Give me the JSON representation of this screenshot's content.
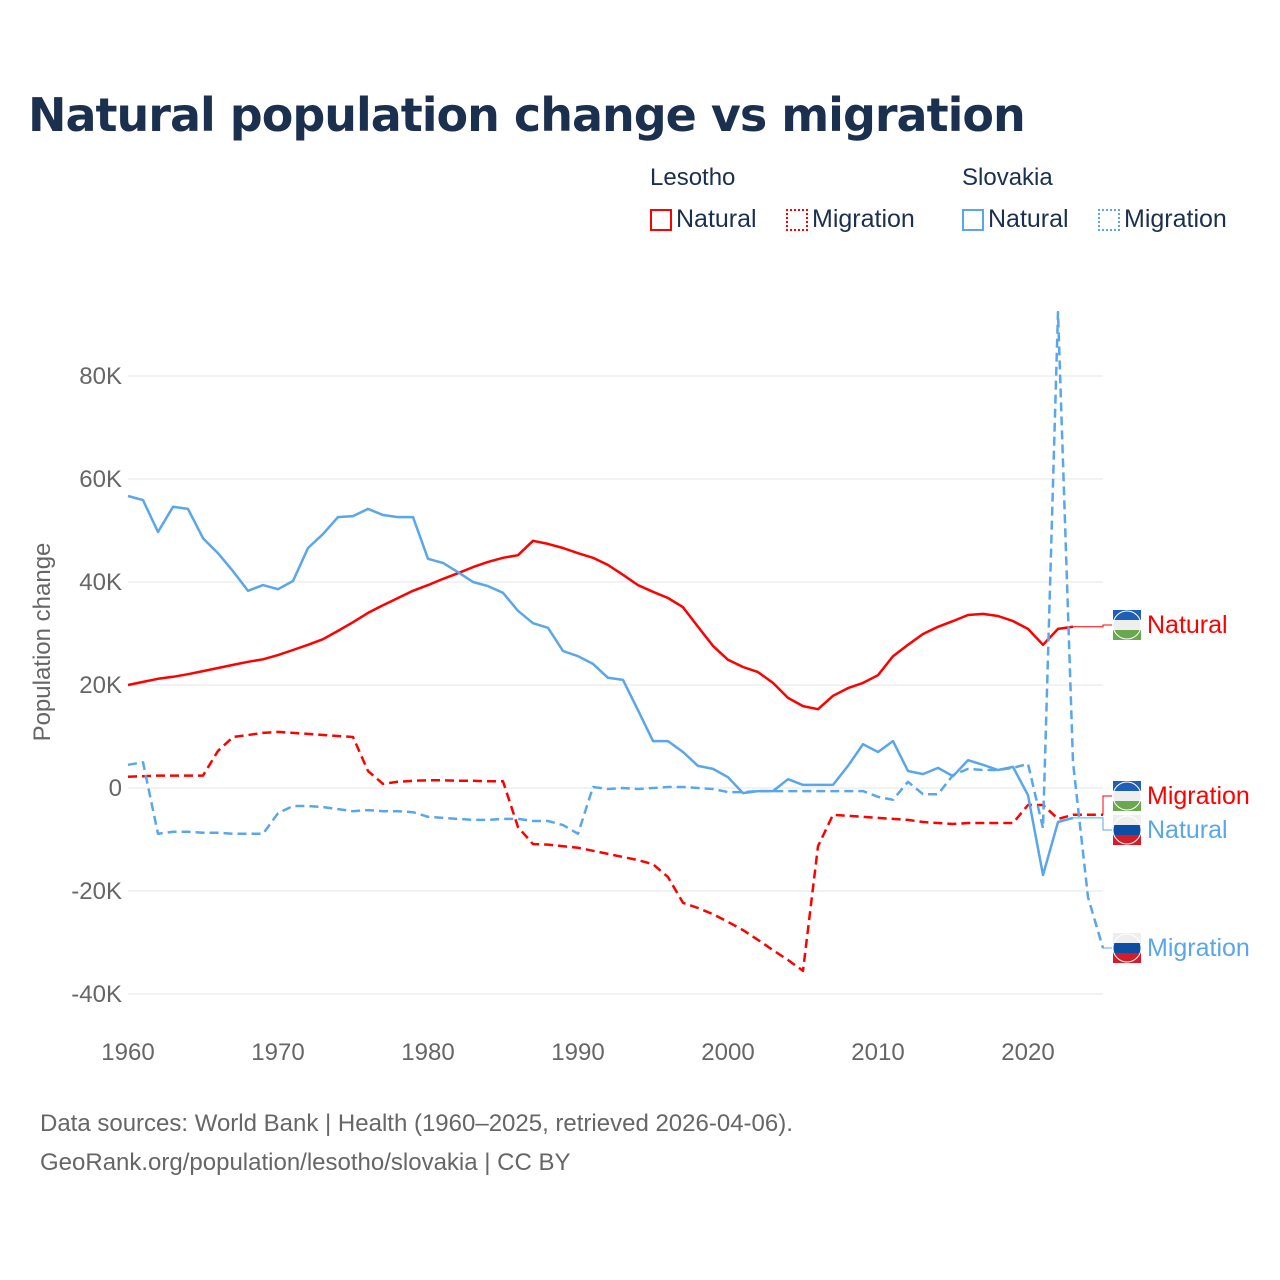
{
  "title": "Natural population change vs migration",
  "legend": {
    "groups": [
      {
        "country": "Lesotho",
        "color": "#ff0000",
        "items": [
          "Natural",
          "Migration"
        ]
      },
      {
        "country": "Slovakia",
        "color": "#5aa6ea",
        "items": [
          "Natural",
          "Migration"
        ]
      }
    ]
  },
  "footer": {
    "line1": "Data sources: World Bank | Health (1960–2025, retrieved 2026-04-06).",
    "line2": "GeoRank.org/population/lesotho/slovakia | CC BY"
  },
  "chart_data": {
    "type": "line",
    "title": "Natural population change vs migration",
    "xlabel": "",
    "ylabel": "Population change",
    "xlim": [
      1960,
      2025
    ],
    "ylim": [
      -40000,
      80000
    ],
    "x_ticks": [
      1960,
      1970,
      1980,
      1990,
      2000,
      2010,
      2020
    ],
    "y_ticks": [
      -40000,
      -20000,
      0,
      20000,
      40000,
      60000,
      80000
    ],
    "y_tick_labels": [
      "-40K",
      "-20K",
      "0",
      "20K",
      "40K",
      "60K",
      "80K"
    ],
    "grid": true,
    "series": [
      {
        "name": "Lesotho Natural",
        "label": "Natural",
        "color": "#ff0000",
        "dash": false,
        "start_year": 1960,
        "values": [
          20.0,
          20.6,
          21.2,
          21.6,
          22.1,
          22.7,
          23.3,
          23.9,
          24.5,
          25.0,
          25.8,
          26.8,
          27.8,
          28.9,
          30.5,
          32.2,
          34.0,
          35.5,
          36.9,
          38.3,
          39.4,
          40.6,
          41.7,
          42.9,
          43.9,
          44.7,
          45.2,
          48.0,
          47.4,
          46.6,
          45.6,
          44.7,
          43.3,
          41.4,
          39.4,
          38.1,
          36.9,
          35.1,
          31.3,
          27.6,
          24.9,
          23.5,
          22.5,
          20.4,
          17.5,
          15.9,
          15.3,
          17.9,
          19.4,
          20.4,
          21.9,
          25.6,
          27.8,
          29.9,
          31.3,
          32.4,
          33.6,
          33.8,
          33.4,
          32.4,
          30.9,
          27.8,
          30.9,
          31.3
        ]
      },
      {
        "name": "Lesotho Migration",
        "label": "Migration",
        "color": "#ff0000",
        "dash": true,
        "start_year": 1960,
        "values": [
          2.2,
          2.3,
          2.4,
          2.4,
          2.4,
          2.4,
          7.2,
          9.9,
          10.3,
          10.7,
          10.9,
          10.7,
          10.5,
          10.3,
          10.1,
          9.9,
          3.3,
          0.8,
          1.2,
          1.4,
          1.5,
          1.5,
          1.4,
          1.4,
          1.3,
          1.3,
          -7.6,
          -10.9,
          -11.0,
          -11.3,
          -11.6,
          -12.2,
          -12.8,
          -13.4,
          -14.0,
          -14.8,
          -17.3,
          -22.3,
          -23.3,
          -24.5,
          -26.0,
          -27.6,
          -29.5,
          -31.5,
          -33.4,
          -35.5,
          -11.3,
          -5.2,
          -5.4,
          -5.6,
          -5.8,
          -6.0,
          -6.2,
          -6.6,
          -6.8,
          -7.0,
          -6.8,
          -6.8,
          -6.8,
          -6.8,
          -3.3,
          -3.3,
          -6.0,
          -5.2,
          -5.2,
          -5.2
        ]
      },
      {
        "name": "Slovakia Natural",
        "label": "Natural",
        "color": "#5aa6ea",
        "dash": false,
        "start_year": 1960,
        "values": [
          56.7,
          55.9,
          49.7,
          54.6,
          54.2,
          48.5,
          45.6,
          42.1,
          38.3,
          39.4,
          38.6,
          40.2,
          46.6,
          49.3,
          52.6,
          52.8,
          54.2,
          53.0,
          52.6,
          52.6,
          44.5,
          43.7,
          41.9,
          40.0,
          39.2,
          37.9,
          34.4,
          32.0,
          31.1,
          26.6,
          25.6,
          24.1,
          21.4,
          21.0,
          15.1,
          9.1,
          9.1,
          7.0,
          4.3,
          3.7,
          2.1,
          -1.0,
          -0.6,
          -0.6,
          1.7,
          0.6,
          0.6,
          0.6,
          4.3,
          8.5,
          7.0,
          9.1,
          3.3,
          2.7,
          3.9,
          2.3,
          5.4,
          4.5,
          3.5,
          4.1,
          -1.4,
          -16.9,
          -6.6,
          -5.8
        ]
      },
      {
        "name": "Slovakia Migration",
        "label": "Migration",
        "color": "#5aa6ea",
        "dash": true,
        "start_year": 1960,
        "values": [
          4.5,
          5.0,
          -8.9,
          -8.5,
          -8.5,
          -8.7,
          -8.7,
          -8.9,
          -8.9,
          -8.9,
          -4.9,
          -3.5,
          -3.5,
          -3.7,
          -4.1,
          -4.5,
          -4.3,
          -4.5,
          -4.5,
          -4.7,
          -5.6,
          -5.8,
          -6.0,
          -6.2,
          -6.2,
          -6.0,
          -6.0,
          -6.4,
          -6.4,
          -7.2,
          -8.9,
          0.2,
          -0.2,
          0.0,
          -0.2,
          0.0,
          0.2,
          0.2,
          0.0,
          -0.2,
          -0.8,
          -0.8,
          -0.6,
          -0.6,
          -0.6,
          -0.6,
          -0.6,
          -0.6,
          -0.6,
          -0.6,
          -1.7,
          -2.3,
          1.2,
          -1.2,
          -1.2,
          2.5,
          3.7,
          3.5,
          3.5,
          3.9,
          4.7,
          -7.8,
          92.4,
          5.0,
          -21.2,
          -31.1
        ]
      }
    ],
    "value_unit": "thousands"
  }
}
